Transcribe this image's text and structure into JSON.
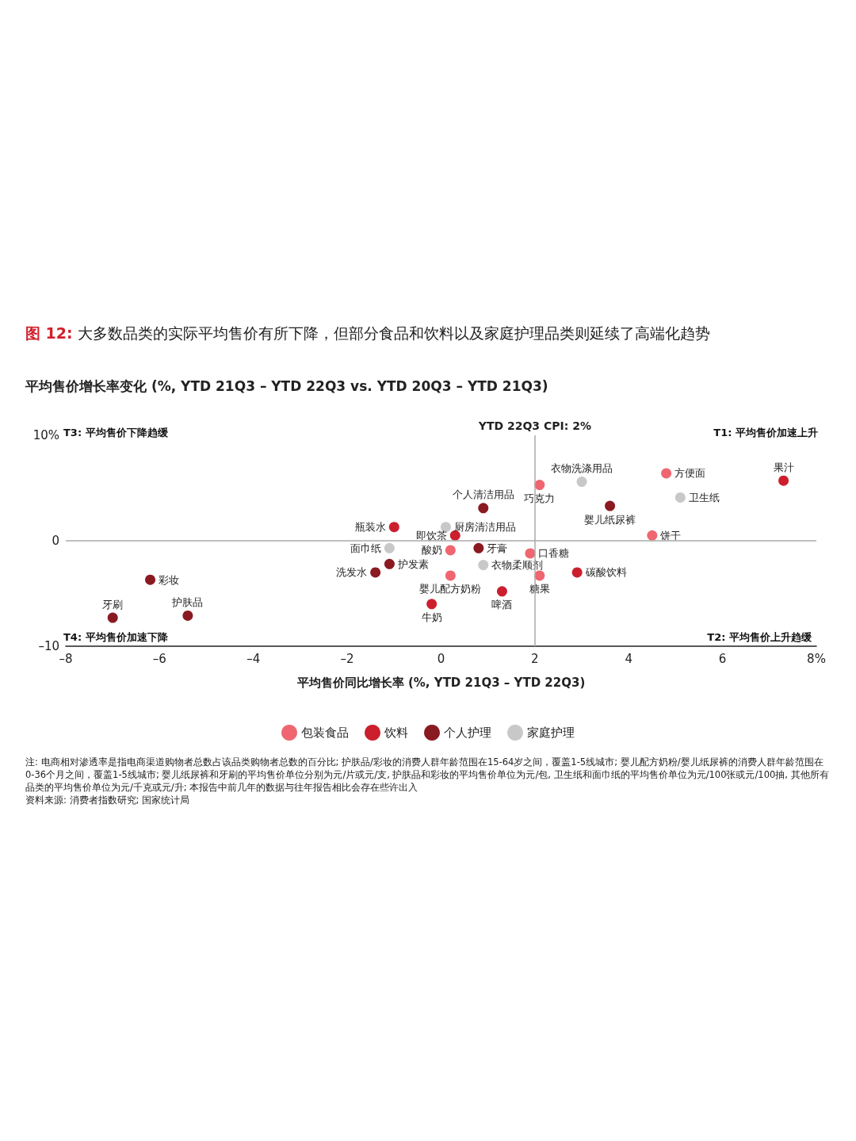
{
  "chart_data": {
    "type": "scatter",
    "title": "图 12: 大多数品类的实际平均售价有所下降，但部分食品和饮料以及家庭护理品类则延续了高端化趋势",
    "subtitle": "平均售价增长率变化 (%, YTD 21Q3 – YTD 22Q3 vs. YTD 20Q3 – YTD 21Q3)",
    "xlabel": "平均售价同比增长率 (%, YTD 21Q3 – YTD 22Q3)",
    "xlim": [
      -8,
      8
    ],
    "xticks": [
      {
        "value": -8,
        "label": "–8"
      },
      {
        "value": -6,
        "label": "–6"
      },
      {
        "value": -4,
        "label": "–4"
      },
      {
        "value": -2,
        "label": "–2"
      },
      0,
      2,
      4,
      6,
      {
        "value": 8,
        "label": "8%"
      }
    ],
    "ylim": [
      -10,
      10
    ],
    "yticks": [
      {
        "value": -10,
        "label": "–10"
      },
      0,
      {
        "value": 10,
        "label": "10%"
      }
    ],
    "grid": false,
    "legend": "bottom",
    "marker": "circle",
    "ref_lines": [
      {
        "axis": "x",
        "value": 2,
        "label": "YTD 22Q3 CPI: 2%",
        "color": "#aaaaaa"
      },
      {
        "axis": "y",
        "value": 0,
        "color": "#aaaaaa"
      }
    ],
    "series": [
      {
        "name": "包装食品",
        "color": "#ef6670",
        "x": [
          2.1,
          4.8,
          4.5,
          0.2,
          1.9,
          0.2,
          2.1
        ],
        "values": [
          5.3,
          6.4,
          0.5,
          -0.9,
          -1.2,
          -3.3,
          -3.3
        ],
        "value_labels": [
          "巧克力",
          "方便面",
          "饼干",
          "酸奶",
          "口香糖",
          "婴儿配方奶粉",
          "糖果"
        ]
      },
      {
        "name": "饮料",
        "color": "#cc1f2e",
        "x": [
          -1,
          0.3,
          -0.2,
          1.3,
          2.9,
          7.3
        ],
        "values": [
          1.3,
          0.5,
          -6,
          -4.8,
          -3,
          5.7
        ],
        "value_labels": [
          "瓶装水",
          "即饮茶",
          "牛奶",
          "啤酒",
          "碳酸饮料",
          "果汁"
        ]
      },
      {
        "name": "个人护理",
        "color": "#8a1a22",
        "x": [
          -6.2,
          -7,
          -5.4,
          -1.4,
          -1.1,
          0.8,
          0.9,
          3.6
        ],
        "values": [
          -3.7,
          -7.3,
          -7.1,
          -3,
          -2.2,
          -0.7,
          3.1,
          3.3
        ],
        "value_labels": [
          "彩妆",
          "牙刷",
          "护肤品",
          "洗发水",
          "护发素",
          "牙膏",
          "个人清洁用品",
          "婴儿纸尿裤"
        ]
      },
      {
        "name": "家庭护理",
        "color": "#c8c8c8",
        "x": [
          -1.1,
          0.1,
          0.9,
          3,
          5.1
        ],
        "values": [
          -0.7,
          1.3,
          -2.3,
          5.6,
          4.1
        ],
        "value_labels": [
          "面巾纸",
          "厨房清洁用品",
          "衣物柔顺剂",
          "衣物洗涤用品",
          "卫生纸"
        ]
      }
    ],
    "annotations": [
      "T3: 平均售价下降趋缓",
      "T1: 平均售价加速上升",
      "T4: 平均售价加速下降",
      "T2: 平均售价上升趋缓",
      "注: 电商相对渗透率是指电商渠道购物者总数占该品类购物者总数的百分比; 护肤品/彩妆的消费人群年龄范围在15-64岁之间，覆盖1-5线城市; 婴儿配方奶粉/婴儿纸尿裤的消费人群年龄范围在0-36个月之间，覆盖1-5线城市; 婴儿纸尿裤和牙刷的平均售价单位分别为元/片或元/支, 护肤品和彩妆的平均售价单位为元/包, 卫生纸和面巾纸的平均售价单位为元/100张或元/100抽, 其他所有品类的平均售价单位为元/千克或元/升; 本报告中前几年的数据与往年报告相比会存在些许出入",
      "资料来源: 消费者指数研究; 国家统计局"
    ]
  }
}
